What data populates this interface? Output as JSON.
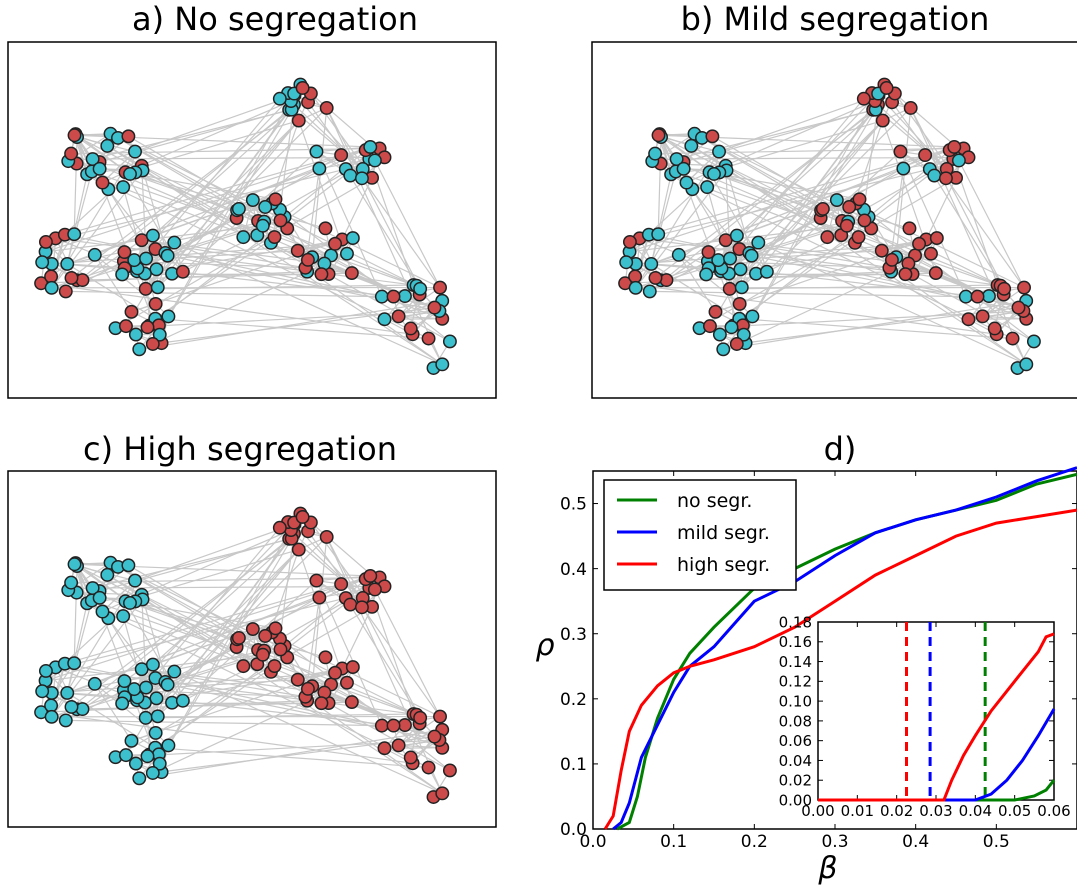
{
  "colors": {
    "node_cyan": "#3cc0ce",
    "node_red": "#cc4a4a",
    "edge": "#c8c8c8",
    "no_segr": "#008000",
    "mild_segr": "#0000ff",
    "high_segr": "#ff0000"
  },
  "panels": {
    "a": {
      "title": "a) No segregation",
      "red_fraction": 0.43
    },
    "b": {
      "title": "b) Mild segregation",
      "red_fraction": 0.43
    },
    "c": {
      "title": "c) High segregation",
      "red_fraction": 0.43
    },
    "d": {
      "title": "d)"
    }
  },
  "chart_data": [
    {
      "type": "line",
      "xlabel": "β",
      "ylabel": "ρ",
      "xlim": [
        0.0,
        0.6
      ],
      "ylim": [
        0.0,
        0.55
      ],
      "xticks": [
        "0.0",
        "0.1",
        "0.2",
        "0.3",
        "0.4",
        "0.5"
      ],
      "yticks": [
        "0.0",
        "0.1",
        "0.2",
        "0.3",
        "0.4",
        "0.5"
      ],
      "legend_position": "top-left",
      "series": [
        {
          "name": "no segr.",
          "color": "#008000",
          "x": [
            0.03,
            0.045,
            0.055,
            0.065,
            0.08,
            0.1,
            0.12,
            0.15,
            0.2,
            0.25,
            0.3,
            0.35,
            0.4,
            0.45,
            0.5,
            0.55,
            0.6
          ],
          "y": [
            0.0,
            0.01,
            0.05,
            0.11,
            0.17,
            0.23,
            0.27,
            0.31,
            0.37,
            0.4,
            0.43,
            0.455,
            0.475,
            0.49,
            0.505,
            0.53,
            0.545
          ]
        },
        {
          "name": "mild segr.",
          "color": "#0000ff",
          "x": [
            0.025,
            0.035,
            0.045,
            0.06,
            0.08,
            0.1,
            0.12,
            0.15,
            0.2,
            0.25,
            0.3,
            0.35,
            0.4,
            0.45,
            0.5,
            0.55,
            0.6
          ],
          "y": [
            0.0,
            0.01,
            0.04,
            0.11,
            0.16,
            0.21,
            0.25,
            0.28,
            0.35,
            0.38,
            0.42,
            0.455,
            0.475,
            0.49,
            0.51,
            0.535,
            0.555
          ]
        },
        {
          "name": "high segr.",
          "color": "#ff0000",
          "x": [
            0.015,
            0.025,
            0.035,
            0.045,
            0.06,
            0.08,
            0.1,
            0.12,
            0.15,
            0.2,
            0.25,
            0.3,
            0.35,
            0.4,
            0.45,
            0.5,
            0.55,
            0.6
          ],
          "y": [
            0.0,
            0.02,
            0.09,
            0.15,
            0.19,
            0.22,
            0.24,
            0.25,
            0.26,
            0.28,
            0.31,
            0.35,
            0.39,
            0.42,
            0.45,
            0.47,
            0.48,
            0.49
          ]
        }
      ]
    },
    {
      "type": "line",
      "xlim": [
        0.0,
        0.06
      ],
      "ylim": [
        0.0,
        0.18
      ],
      "xticks": [
        "0.00",
        "0.01",
        "0.02",
        "0.03",
        "0.04",
        "0.05",
        "0.06"
      ],
      "yticks": [
        "0.00",
        "0.02",
        "0.04",
        "0.06",
        "0.08",
        "0.10",
        "0.12",
        "0.14",
        "0.16",
        "0.18"
      ],
      "thresholds": [
        {
          "series": "high segr.",
          "x": 0.0225,
          "color": "#ff0000"
        },
        {
          "series": "mild segr.",
          "x": 0.0285,
          "color": "#0000ff"
        },
        {
          "series": "no segr.",
          "x": 0.0425,
          "color": "#008000"
        }
      ],
      "series": [
        {
          "name": "no segr.",
          "color": "#008000",
          "x": [
            0.0,
            0.045,
            0.05,
            0.055,
            0.058,
            0.06
          ],
          "y": [
            0.0,
            0.0,
            0.0,
            0.004,
            0.01,
            0.02
          ]
        },
        {
          "name": "mild segr.",
          "color": "#0000ff",
          "x": [
            0.0,
            0.04,
            0.044,
            0.048,
            0.052,
            0.056,
            0.06
          ],
          "y": [
            0.0,
            0.0,
            0.006,
            0.02,
            0.04,
            0.065,
            0.092
          ]
        },
        {
          "name": "high segr.",
          "color": "#ff0000",
          "x": [
            0.0,
            0.032,
            0.034,
            0.037,
            0.04,
            0.044,
            0.048,
            0.052,
            0.056,
            0.058,
            0.06
          ],
          "y": [
            0.0,
            0.0,
            0.02,
            0.045,
            0.065,
            0.09,
            0.11,
            0.13,
            0.15,
            0.165,
            0.168
          ]
        }
      ]
    }
  ]
}
